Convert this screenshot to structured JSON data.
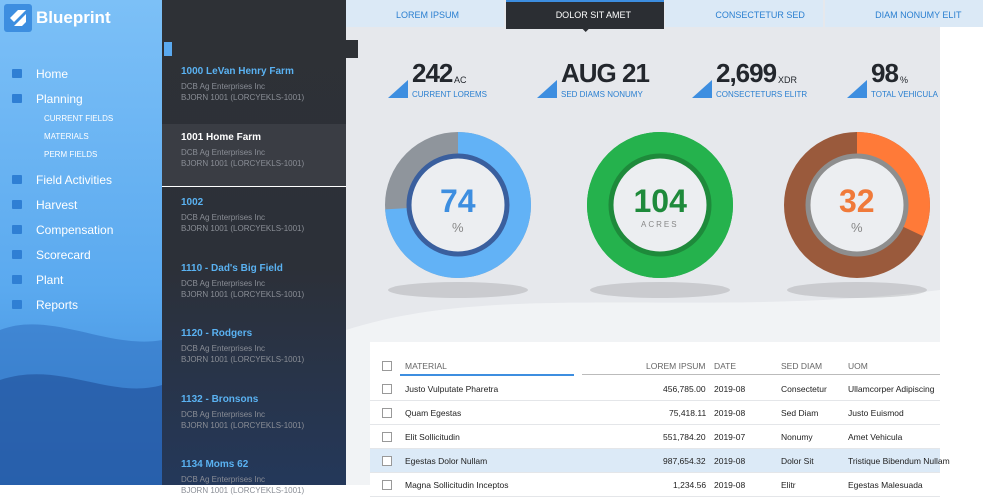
{
  "sidebar": {
    "brand": "Blueprint",
    "nav": [
      {
        "label": "Home"
      },
      {
        "label": "Planning",
        "children": [
          "CURRENT FIELDS",
          "MATERIALS",
          "PERM FIELDS"
        ]
      },
      {
        "label": "Field Activities"
      },
      {
        "label": "Harvest"
      },
      {
        "label": "Compensation"
      },
      {
        "label": "Scorecard"
      },
      {
        "label": "Plant"
      },
      {
        "label": "Reports"
      }
    ]
  },
  "fields": [
    {
      "name": "1000 LeVan Henry Farm",
      "company": "DCB Ag Enterprises Inc",
      "code": "BJORN 1001 (LORCYEKLS-1001)"
    },
    {
      "name": "1001 Home Farm",
      "company": "DCB Ag Enterprises Inc",
      "code": "BJORN 1001 (LORCYEKLS-1001)"
    },
    {
      "name": "1002",
      "company": "DCB Ag Enterprises Inc",
      "code": "BJORN 1001 (LORCYEKLS-1001)"
    },
    {
      "name": "1110 - Dad's Big Field",
      "company": "DCB Ag Enterprises Inc",
      "code": "BJORN 1001 (LORCYEKLS-1001)"
    },
    {
      "name": "1120 - Rodgers",
      "company": "DCB Ag Enterprises Inc",
      "code": "BJORN 1001 (LORCYEKLS-1001)"
    },
    {
      "name": "1132 - Bronsons",
      "company": "DCB Ag Enterprises Inc",
      "code": "BJORN 1001 (LORCYEKLS-1001)"
    },
    {
      "name": "1134 Moms 62",
      "company": "DCB Ag Enterprises Inc",
      "code": "BJORN 1001 (LORCYEKLS-1001)"
    }
  ],
  "tabs": [
    "LOREM IPSUM",
    "DOLOR SIT AMET",
    "CONSECTETUR SED",
    "DIAM NONUMY ELIT"
  ],
  "kpis": [
    {
      "value": "242",
      "unit": "AC",
      "label": "CURRENT LOREMS"
    },
    {
      "value": "AUG 21",
      "label": "SED DIAMS NONUMY"
    },
    {
      "value": "2,699",
      "unit": "XDR",
      "label": "CONSECTETURS ELITR"
    },
    {
      "value": "98",
      "unit": "%",
      "label": "TOTAL VEHICULA"
    }
  ],
  "gauges": [
    {
      "value": 74,
      "unit": "%"
    },
    {
      "value": 104,
      "unit": "ACRES"
    },
    {
      "value": 32,
      "unit": "%"
    }
  ],
  "table": {
    "headers": [
      "MATERIAL",
      "LOREM IPSUM",
      "DATE",
      "SED DIAM",
      "UOM"
    ],
    "rows": [
      [
        "Justo Vulputate Pharetra",
        "456,785.00",
        "2019-08",
        "Consectetur",
        "Ullamcorper Adipiscing"
      ],
      [
        "Quam Egestas",
        "75,418.11",
        "2019-08",
        "Sed Diam",
        "Justo Euismod"
      ],
      [
        "Elit Sollicitudin",
        "551,784.20",
        "2019-07",
        "Nonumy",
        "Amet Vehicula"
      ],
      [
        "Egestas Dolor Nullam",
        "987,654.32",
        "2019-08",
        "Dolor Sit",
        "Tristique Bibendum Nullam"
      ],
      [
        "Magna Sollicitudin Inceptos",
        "1,234.56",
        "2019-08",
        "Elitr",
        "Egestas Malesuada"
      ]
    ]
  }
}
